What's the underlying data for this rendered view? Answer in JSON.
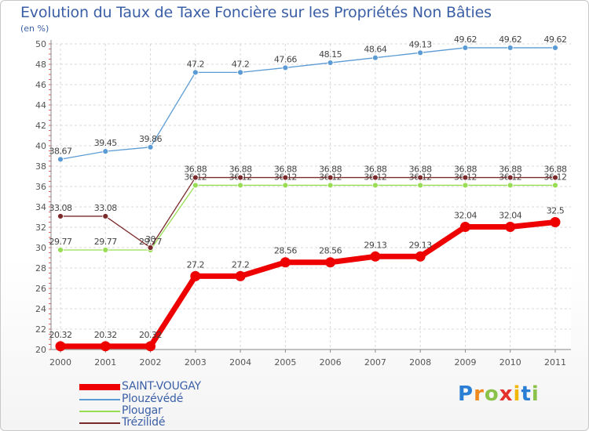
{
  "chart_data": {
    "type": "line",
    "title": "Evolution du Taux de Taxe Foncière sur les Propriétés Non Bâties",
    "ylabel": "(en %)",
    "xlabel": "",
    "ylim": [
      20,
      50
    ],
    "yticks": [
      20,
      22,
      24,
      26,
      28,
      30,
      32,
      34,
      36,
      38,
      40,
      42,
      44,
      46,
      48,
      50
    ],
    "x": [
      "2000",
      "2001",
      "2002",
      "2003",
      "2004",
      "2005",
      "2006",
      "2007",
      "2008",
      "2009",
      "2010",
      "2011"
    ],
    "grid": true,
    "series": [
      {
        "name": "SAINT-VOUGAY",
        "color": "#ee0000",
        "values": [
          20.32,
          20.32,
          20.32,
          27.2,
          27.2,
          28.56,
          28.56,
          29.13,
          29.13,
          32.04,
          32.04,
          32.5
        ],
        "labels": [
          "20.32",
          "20.32",
          "20.32",
          "27.2",
          "27.2",
          "28.56",
          "28.56",
          "29.13",
          "29.13",
          "32.04",
          "32.04",
          "32.5"
        ]
      },
      {
        "name": "Plouzévédé",
        "color": "#5b9bd5",
        "values": [
          38.67,
          39.45,
          39.86,
          47.2,
          47.2,
          47.66,
          48.15,
          48.64,
          49.13,
          49.62,
          49.62,
          49.62
        ],
        "labels": [
          "38.67",
          "39.45",
          "39.86",
          "47.2",
          "47.2",
          "47.66",
          "48.15",
          "48.64",
          "49.13",
          "49.62",
          "49.62",
          "49.62"
        ]
      },
      {
        "name": "Plougar",
        "color": "#99dd55",
        "values": [
          29.77,
          29.77,
          29.77,
          36.12,
          36.12,
          36.12,
          36.12,
          36.12,
          36.12,
          36.12,
          36.12,
          36.12
        ],
        "labels": [
          "29.77",
          "29.77",
          "29.77",
          "36.12",
          "36.12",
          "36.12",
          "36.12",
          "36.12",
          "36.12",
          "36.12",
          "36.12",
          "36.12"
        ]
      },
      {
        "name": "Trézilidé",
        "color": "#7a2a2a",
        "values": [
          33.08,
          33.08,
          30.0,
          36.88,
          36.88,
          36.88,
          36.88,
          36.88,
          36.88,
          36.88,
          36.88,
          36.88
        ],
        "labels": [
          "33.08",
          "33.08",
          "30",
          "36.88",
          "36.88",
          "36.88",
          "36.88",
          "36.88",
          "36.88",
          "36.88",
          "36.88",
          "36.88"
        ]
      }
    ]
  },
  "logo": {
    "letters": [
      "P",
      "r",
      "o",
      "x",
      "i",
      "t",
      "i"
    ],
    "colors": [
      "#2a7fd4",
      "#f08a1e",
      "#8bc34a",
      "#e4322b",
      "#f2b705",
      "#2a7fd4",
      "#8bc34a"
    ]
  }
}
